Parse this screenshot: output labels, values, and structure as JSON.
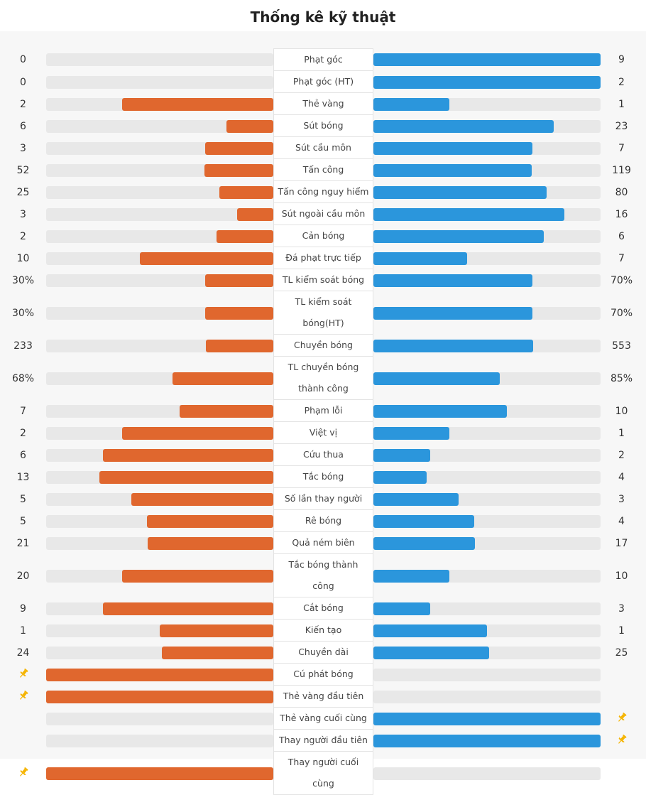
{
  "title": "Thống kê kỹ thuật",
  "home_color": "#e0672e",
  "away_color": "#2b96dc",
  "pin_color": "#f5b400",
  "rows": [
    {
      "label": "Phạt góc",
      "home": 0,
      "away": 9
    },
    {
      "label": "Phạt góc (HT)",
      "home": 0,
      "away": 2
    },
    {
      "label": "Thẻ vàng",
      "home": 2,
      "away": 1
    },
    {
      "label": "Sút bóng",
      "home": 6,
      "away": 23
    },
    {
      "label": "Sút cầu môn",
      "home": 3,
      "away": 7
    },
    {
      "label": "Tấn công",
      "home": 52,
      "away": 119
    },
    {
      "label": "Tấn công nguy hiểm",
      "home": 25,
      "away": 80
    },
    {
      "label": "Sút ngoài cầu môn",
      "home": 3,
      "away": 16
    },
    {
      "label": "Cản bóng",
      "home": 2,
      "away": 6
    },
    {
      "label": "Đá phạt trực tiếp",
      "home": 10,
      "away": 7
    },
    {
      "label": "TL kiểm soát bóng",
      "home": 30,
      "away": 70,
      "home_label": "30%",
      "away_label": "70%"
    },
    {
      "label": "TL kiểm soát bóng(HT)",
      "home": 30,
      "away": 70,
      "home_label": "30%",
      "away_label": "70%"
    },
    {
      "label": "Chuyền bóng",
      "home": 233,
      "away": 553
    },
    {
      "label": "TL chuyền bóng thành công",
      "home": 68,
      "away": 85,
      "home_label": "68%",
      "away_label": "85%"
    },
    {
      "label": "Phạm lỗi",
      "home": 7,
      "away": 10
    },
    {
      "label": "Việt vị",
      "home": 2,
      "away": 1
    },
    {
      "label": "Cứu thua",
      "home": 6,
      "away": 2
    },
    {
      "label": "Tắc bóng",
      "home": 13,
      "away": 4
    },
    {
      "label": "Số lần thay người",
      "home": 5,
      "away": 3
    },
    {
      "label": "Rê bóng",
      "home": 5,
      "away": 4
    },
    {
      "label": "Quả ném biên",
      "home": 21,
      "away": 17
    },
    {
      "label": "Tắc bóng thành công",
      "home": 20,
      "away": 10
    },
    {
      "label": "Cắt bóng",
      "home": 9,
      "away": 3
    },
    {
      "label": "Kiến tạo",
      "home": 1,
      "away": 1
    },
    {
      "label": "Chuyền dài",
      "home": 24,
      "away": 25
    },
    {
      "label": "Cú phát bóng",
      "first": "home"
    },
    {
      "label": "Thẻ vàng đầu tiên",
      "first": "home"
    },
    {
      "label": "Thẻ vàng cuối cùng",
      "first": "away"
    },
    {
      "label": "Thay người đầu tiên",
      "first": "away"
    },
    {
      "label": "Thay người cuối cùng",
      "first": "home"
    }
  ]
}
